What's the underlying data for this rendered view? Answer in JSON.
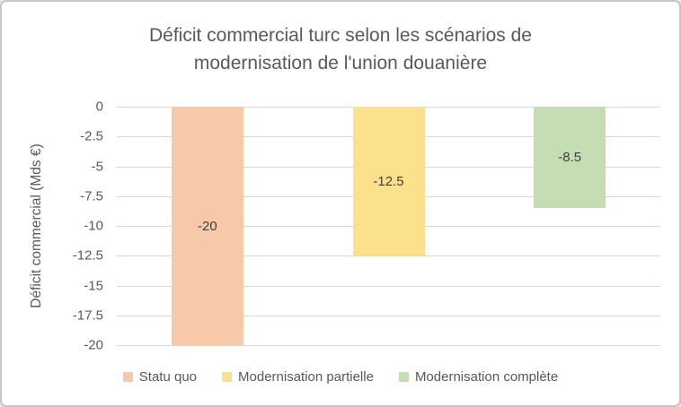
{
  "chart_data": {
    "type": "bar",
    "title": "Déficit commercial turc selon les scénarios de modernisation de l'union douanière",
    "title_lines": [
      "Déficit commercial turc selon les scénarios de",
      "modernisation de l'union douanière"
    ],
    "ylabel": "Déficit commercial (Mds €)",
    "xlabel": "",
    "categories": [
      "Statu quo",
      "Modernisation partielle",
      "Modernisation complète"
    ],
    "values": [
      -20,
      -12.5,
      -8.5
    ],
    "data_labels": [
      "-20",
      "-12.5",
      "-8.5"
    ],
    "bar_colors": [
      "#F6CAA8",
      "#FBE18C",
      "#C5DDB2"
    ],
    "ylim": [
      -20,
      0
    ],
    "yticks": [
      0,
      -2.5,
      -5,
      -7.5,
      -10,
      -12.5,
      -15,
      -17.5,
      -20
    ],
    "ytick_labels": [
      "0",
      "-2.5",
      "-5",
      "-7.5",
      "-10",
      "-12.5",
      "-15",
      "-17.5",
      "-20"
    ],
    "grid": true,
    "legend_position": "bottom"
  },
  "colors": {
    "title_text": "#595959",
    "axis_text": "#595959",
    "data_label_text": "#3f3f3f",
    "gridline": "#d9d9d9",
    "chart_border": "#c6c6c6",
    "background": "#ffffff"
  }
}
